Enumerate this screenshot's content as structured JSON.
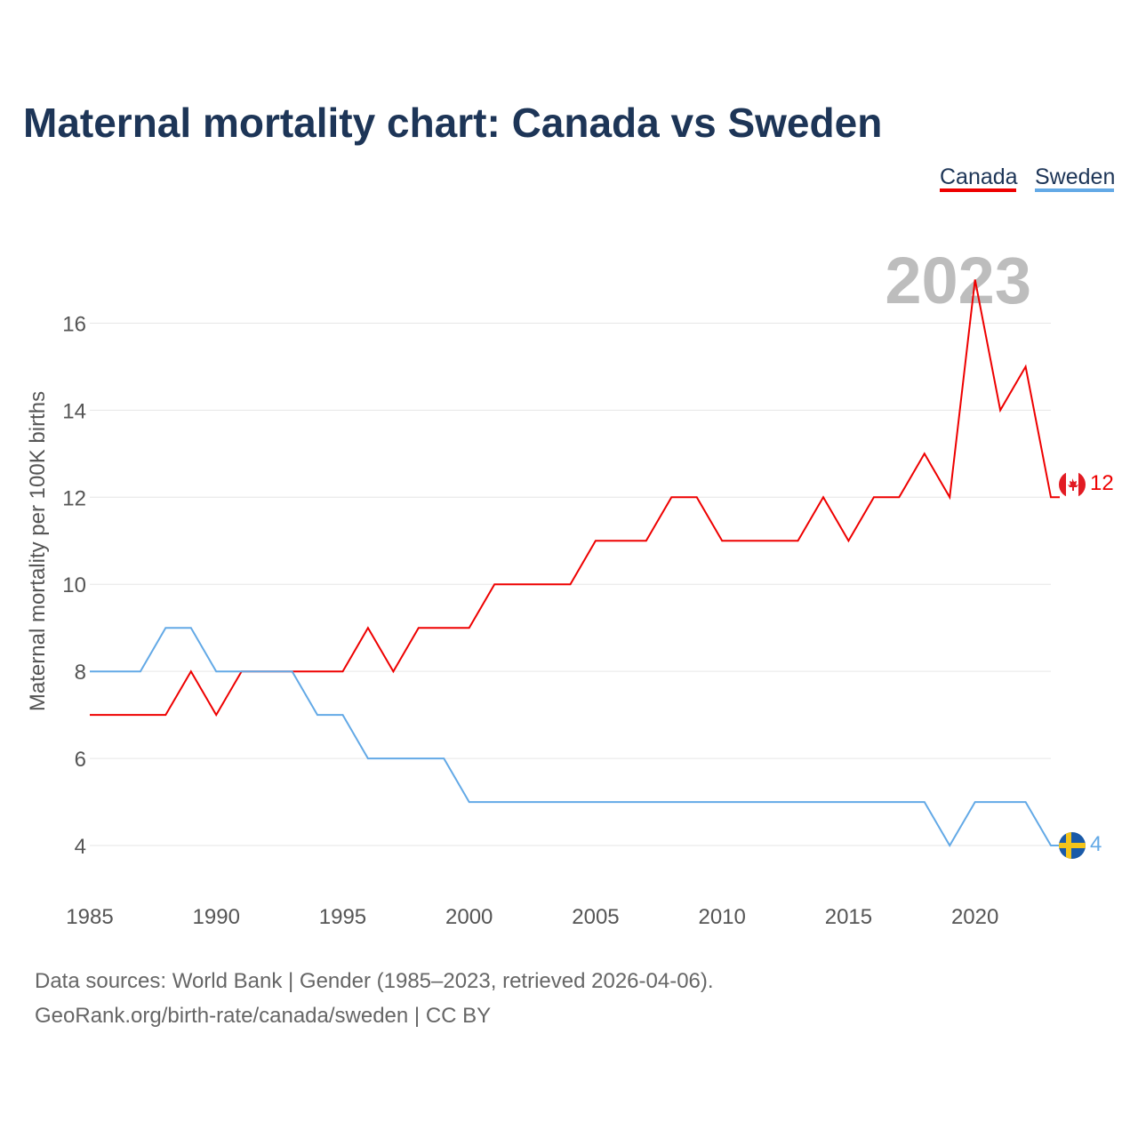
{
  "title": "Maternal mortality chart: Canada vs Sweden",
  "colors": {
    "canada": "#ee0000",
    "sweden": "#63a9e6",
    "title": "#1d3557",
    "grid": "#e6e6e6",
    "year": "#bdbdbd"
  },
  "legend": {
    "items": [
      {
        "name": "Canada",
        "color": "#ee0000"
      },
      {
        "name": "Sweden",
        "color": "#63a9e6"
      }
    ]
  },
  "year_watermark": "2023",
  "end_labels": {
    "canada": {
      "value": "12",
      "icon": "canada-flag-icon"
    },
    "sweden": {
      "value": "4",
      "icon": "sweden-flag-icon"
    }
  },
  "source": {
    "line1": "Data sources: World Bank | Gender (1985–2023, retrieved 2026-04-06).",
    "line2": "GeoRank.org/birth-rate/canada/sweden | CC BY"
  },
  "chart_data": {
    "type": "line",
    "title": "Maternal mortality chart: Canada vs Sweden",
    "xlabel": "",
    "ylabel": "Maternal mortality per 100K births",
    "xlim": [
      1985,
      2023
    ],
    "ylim": [
      3,
      17.5
    ],
    "xticks": [
      1985,
      1990,
      1995,
      2000,
      2005,
      2010,
      2015,
      2020
    ],
    "yticks": [
      4,
      6,
      8,
      10,
      12,
      14,
      16
    ],
    "grid": true,
    "legend_position": "top-right",
    "x": [
      1985,
      1986,
      1987,
      1988,
      1989,
      1990,
      1991,
      1992,
      1993,
      1994,
      1995,
      1996,
      1997,
      1998,
      1999,
      2000,
      2001,
      2002,
      2003,
      2004,
      2005,
      2006,
      2007,
      2008,
      2009,
      2010,
      2011,
      2012,
      2013,
      2014,
      2015,
      2016,
      2017,
      2018,
      2019,
      2020,
      2021,
      2022,
      2023
    ],
    "series": [
      {
        "name": "Canada",
        "values": [
          7,
          7,
          7,
          7,
          8,
          7,
          8,
          8,
          8,
          8,
          8,
          9,
          8,
          9,
          9,
          9,
          10,
          10,
          10,
          10,
          11,
          11,
          11,
          12,
          12,
          11,
          11,
          11,
          11,
          12,
          11,
          12,
          12,
          13,
          12,
          17,
          14,
          15,
          12
        ]
      },
      {
        "name": "Sweden",
        "values": [
          8,
          8,
          8,
          9,
          9,
          8,
          8,
          8,
          8,
          7,
          7,
          6,
          6,
          6,
          6,
          5,
          5,
          5,
          5,
          5,
          5,
          5,
          5,
          5,
          5,
          5,
          5,
          5,
          5,
          5,
          5,
          5,
          5,
          5,
          4,
          5,
          5,
          5,
          4
        ]
      }
    ]
  }
}
